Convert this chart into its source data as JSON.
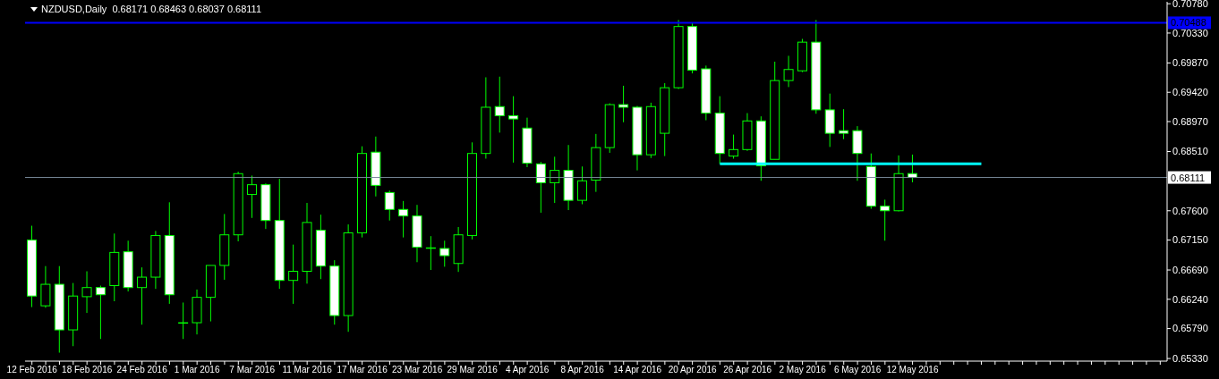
{
  "chart_data": {
    "type": "candlestick",
    "title": "NZDUSD,Daily  0.68171 0.68463 0.68037 0.68111",
    "color": "#00ff00",
    "categories": [
      "12 Feb 2016",
      null,
      null,
      null,
      "18 Feb 2016",
      null,
      null,
      null,
      "24 Feb 2016",
      null,
      null,
      null,
      "1 Mar 2016",
      null,
      null,
      null,
      "7 Mar 2016",
      null,
      null,
      null,
      "11 Mar 2016",
      null,
      null,
      null,
      "17 Mar 2016",
      null,
      null,
      null,
      "23 Mar 2016",
      null,
      null,
      null,
      "29 Mar 2016",
      null,
      null,
      null,
      "4 Apr 2016",
      null,
      null,
      null,
      "8 Apr 2016",
      null,
      null,
      null,
      "14 Apr 2016",
      null,
      null,
      null,
      "20 Apr 2016",
      null,
      null,
      null,
      "26 Apr 2016",
      null,
      null,
      null,
      "2 May 2016",
      null,
      null,
      null,
      "6 May 2016",
      null,
      null,
      null,
      "12 May 2016",
      null,
      null,
      null,
      null,
      null,
      null,
      null,
      null,
      null,
      null,
      null,
      null,
      null,
      null,
      null,
      null,
      null,
      null
    ],
    "ohlc": [
      [
        0.6715,
        0.6737,
        0.6612,
        0.6629
      ],
      [
        0.6614,
        0.6675,
        0.6611,
        0.6647
      ],
      [
        0.6647,
        0.6675,
        0.6542,
        0.6577
      ],
      [
        0.6577,
        0.6649,
        0.6552,
        0.6629
      ],
      [
        0.6628,
        0.6667,
        0.6603,
        0.6642
      ],
      [
        0.6642,
        0.6645,
        0.6563,
        0.6631
      ],
      [
        0.6645,
        0.6725,
        0.6621,
        0.6696
      ],
      [
        0.6697,
        0.6714,
        0.6636,
        0.6642
      ],
      [
        0.6642,
        0.6673,
        0.6585,
        0.6658
      ],
      [
        0.6658,
        0.6729,
        0.664,
        0.6722
      ],
      [
        0.6722,
        0.6773,
        0.6617,
        0.6631
      ],
      [
        0.6588,
        0.6619,
        0.6563,
        0.6588
      ],
      [
        0.6588,
        0.6639,
        0.657,
        0.6627
      ],
      [
        0.6627,
        0.6676,
        0.659,
        0.6676
      ],
      [
        0.6676,
        0.6755,
        0.6654,
        0.6723
      ],
      [
        0.6723,
        0.682,
        0.6713,
        0.6817
      ],
      [
        0.6785,
        0.6814,
        0.6749,
        0.68
      ],
      [
        0.68,
        0.6802,
        0.6732,
        0.6745
      ],
      [
        0.6745,
        0.6809,
        0.664,
        0.6653
      ],
      [
        0.6653,
        0.6708,
        0.6617,
        0.6667
      ],
      [
        0.6667,
        0.6772,
        0.6648,
        0.6742
      ],
      [
        0.673,
        0.6754,
        0.6655,
        0.6675
      ],
      [
        0.6675,
        0.6684,
        0.6585,
        0.6599
      ],
      [
        0.6599,
        0.6739,
        0.6574,
        0.6726
      ],
      [
        0.6726,
        0.6859,
        0.6719,
        0.6848
      ],
      [
        0.685,
        0.6874,
        0.6782,
        0.6799
      ],
      [
        0.6788,
        0.6791,
        0.6745,
        0.6762
      ],
      [
        0.6762,
        0.6775,
        0.6719,
        0.6752
      ],
      [
        0.6752,
        0.6769,
        0.6681,
        0.6704
      ],
      [
        0.6703,
        0.6721,
        0.6669,
        0.6703
      ],
      [
        0.6702,
        0.6714,
        0.6674,
        0.6691
      ],
      [
        0.6679,
        0.6735,
        0.6666,
        0.6723
      ],
      [
        0.6722,
        0.6865,
        0.6716,
        0.6848
      ],
      [
        0.6848,
        0.6965,
        0.684,
        0.6919
      ],
      [
        0.692,
        0.6966,
        0.688,
        0.6906
      ],
      [
        0.6906,
        0.6936,
        0.6834,
        0.6901
      ],
      [
        0.6887,
        0.6903,
        0.6827,
        0.6833
      ],
      [
        0.6832,
        0.6835,
        0.6757,
        0.6803
      ],
      [
        0.6803,
        0.6843,
        0.6772,
        0.6822
      ],
      [
        0.6822,
        0.6861,
        0.6761,
        0.6776
      ],
      [
        0.6776,
        0.6828,
        0.677,
        0.6806
      ],
      [
        0.6807,
        0.6878,
        0.6789,
        0.6857
      ],
      [
        0.6857,
        0.6925,
        0.6849,
        0.6923
      ],
      [
        0.6923,
        0.6952,
        0.6896,
        0.6919
      ],
      [
        0.6919,
        0.6921,
        0.6822,
        0.6846
      ],
      [
        0.6846,
        0.6926,
        0.6841,
        0.692
      ],
      [
        0.6879,
        0.6956,
        0.6844,
        0.6949
      ],
      [
        0.6949,
        0.7053,
        0.6947,
        0.7043
      ],
      [
        0.7043,
        0.7049,
        0.6971,
        0.6976
      ],
      [
        0.6978,
        0.6983,
        0.6899,
        0.691
      ],
      [
        0.691,
        0.6936,
        0.6832,
        0.6848
      ],
      [
        0.6844,
        0.6877,
        0.684,
        0.6854
      ],
      [
        0.6854,
        0.691,
        0.6852,
        0.6898
      ],
      [
        0.6898,
        0.6905,
        0.6806,
        0.6829
      ],
      [
        0.6839,
        0.6989,
        0.6839,
        0.696
      ],
      [
        0.696,
        0.6998,
        0.695,
        0.6977
      ],
      [
        0.6975,
        0.7024,
        0.6973,
        0.7019
      ],
      [
        0.7019,
        0.7053,
        0.6909,
        0.6915
      ],
      [
        0.6915,
        0.694,
        0.6858,
        0.6879
      ],
      [
        0.6883,
        0.6916,
        0.687,
        0.6879
      ],
      [
        0.6883,
        0.689,
        0.6806,
        0.6848
      ],
      [
        0.6828,
        0.6848,
        0.6763,
        0.6767
      ],
      [
        0.6767,
        0.6777,
        0.6714,
        0.676
      ],
      [
        0.676,
        0.6845,
        0.6759,
        0.6817
      ],
      [
        0.68171,
        0.68463,
        0.68037,
        0.68111
      ],
      null,
      null,
      null,
      null,
      null,
      null,
      null,
      null,
      null,
      null,
      null,
      null,
      null,
      null,
      null,
      null,
      null,
      null
    ],
    "series": [
      {
        "type": "line",
        "color": "#00ffff",
        "values": [
          null,
          null,
          null,
          null,
          null,
          null,
          null,
          null,
          null,
          null,
          null,
          null,
          null,
          null,
          null,
          null,
          null,
          null,
          null,
          null,
          null,
          null,
          null,
          null,
          null,
          null,
          null,
          null,
          null,
          null,
          null,
          null,
          null,
          null,
          null,
          null,
          null,
          null,
          null,
          null,
          null,
          null,
          null,
          null,
          null,
          null,
          null,
          null,
          null,
          null,
          0.6832,
          null,
          null,
          null,
          null,
          null,
          null,
          null,
          null,
          null,
          null,
          null,
          null,
          null,
          null,
          null,
          null,
          null,
          null,
          0.6832,
          null,
          null,
          null,
          null,
          null,
          null,
          null,
          null,
          null,
          null,
          null,
          null,
          null
        ]
      }
    ],
    "ylim": [
      0.6529,
      0.7081
    ],
    "yticks": [
      {
        "value": 0.6533,
        "label": "0.65330"
      },
      {
        "value": 0.6579,
        "label": "0.65790"
      },
      {
        "value": 0.6624,
        "label": "0.66240"
      },
      {
        "value": 0.6669,
        "label": "0.66690"
      },
      {
        "value": 0.6715,
        "label": "0.67150"
      },
      {
        "value": 0.676,
        "label": "0.67600"
      },
      {
        "value": 0.6851,
        "label": "0.68510"
      },
      {
        "value": 0.6897,
        "label": "0.68970"
      },
      {
        "value": 0.6942,
        "label": "0.69420"
      },
      {
        "value": 0.6987,
        "label": "0.69870"
      },
      {
        "value": 0.7033,
        "label": "0.70330"
      },
      {
        "value": 0.7078,
        "label": "0.70780"
      }
    ],
    "ref_lines": [
      {
        "axis": "y",
        "value": 0.70488,
        "label": "0.70488",
        "color": "#0000ff"
      },
      {
        "axis": "y",
        "value": 0.68111,
        "label": "0.68111",
        "color": "#778899"
      }
    ]
  }
}
